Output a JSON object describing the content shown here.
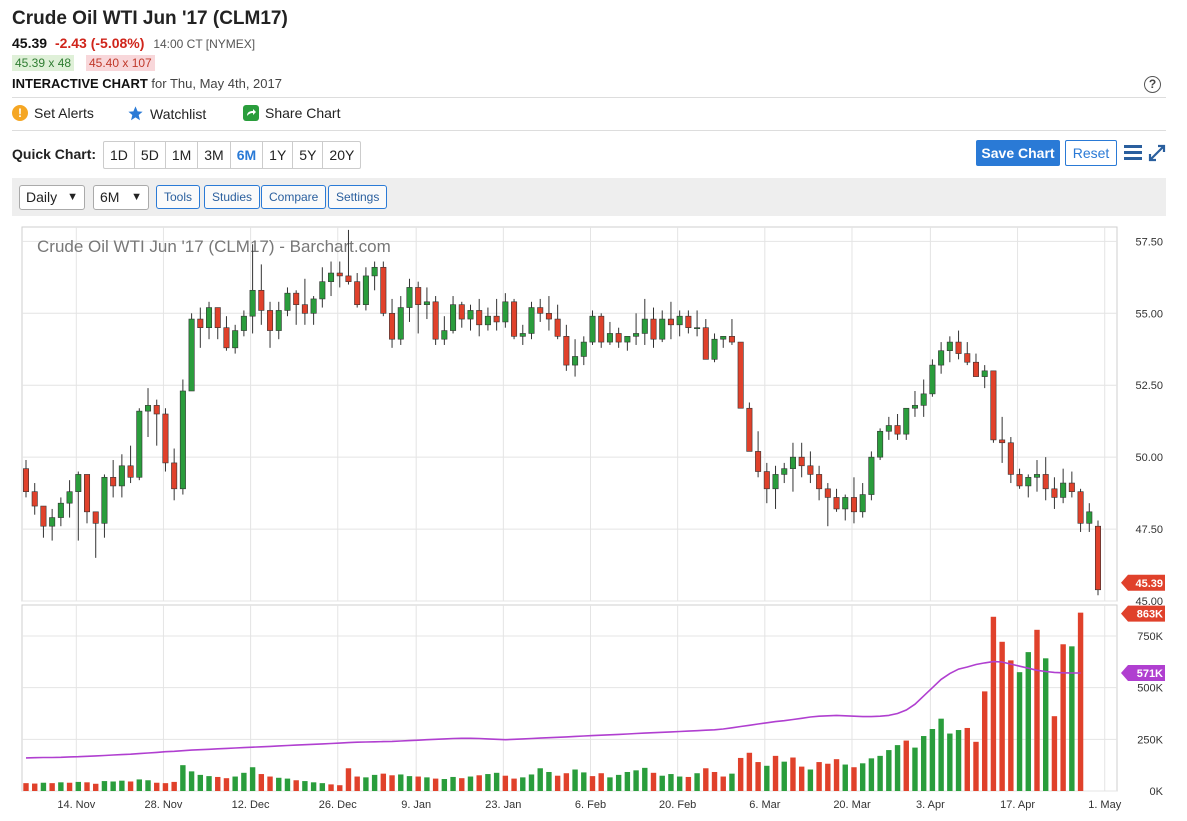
{
  "header": {
    "title": "Crude Oil WTI Jun '17 (CLM17)",
    "last": "45.39",
    "change": "-2.43 (-5.08%)",
    "time": "14:00 CT [NYMEX]",
    "bid": "45.39 x 48",
    "ask": "45.40 x 107",
    "interactive_label": "INTERACTIVE CHART",
    "interactive_date": "for Thu, May 4th, 2017",
    "help": "?"
  },
  "actions": {
    "set_alerts": "Set Alerts",
    "watchlist": "Watchlist",
    "share_chart": "Share Chart"
  },
  "quick_chart": {
    "label": "Quick Chart:",
    "ranges": [
      "1D",
      "5D",
      "1M",
      "3M",
      "6M",
      "1Y",
      "5Y",
      "20Y"
    ],
    "active": "6M"
  },
  "buttons": {
    "save": "Save Chart",
    "reset": "Reset"
  },
  "toolbar": {
    "interval": "Daily",
    "period": "6M",
    "tools": "Tools",
    "studies": "Studies",
    "compare": "Compare",
    "settings": "Settings"
  },
  "colors": {
    "up": "#2a9d3c",
    "down": "#e0412b",
    "ma": "#b03fd0",
    "accent": "#2a7ad6",
    "last_price_tag": "#e0412b",
    "volume_tag": "#e0412b",
    "ma_tag": "#b03fd0"
  },
  "chart_data": {
    "type": "candlestick",
    "title": "Crude Oil WTI Jun '17 (CLM17) - Barchart.com",
    "x_tick_labels": [
      "14. Nov",
      "28. Nov",
      "12. Dec",
      "26. Dec",
      "9. Jan",
      "23. Jan",
      "6. Feb",
      "20. Feb",
      "6. Mar",
      "20. Mar",
      "3. Apr",
      "17. Apr",
      "1. May"
    ],
    "price_axis": {
      "ticks": [
        "57.50",
        "55.00",
        "52.50",
        "50.00",
        "47.50",
        "45.00"
      ],
      "ylim": [
        45.0,
        58.0
      ]
    },
    "volume_axis": {
      "ticks": [
        "750K",
        "500K",
        "250K",
        "0K"
      ],
      "ylim": [
        0,
        900000
      ]
    },
    "last_price_label": "45.39",
    "last_volume_label": "863K",
    "volume_ma_label": "571K",
    "ohlc": [
      [
        49.6,
        49.9,
        48.6,
        48.8
      ],
      [
        48.8,
        49.1,
        48.0,
        48.3
      ],
      [
        48.3,
        48.3,
        47.2,
        47.6
      ],
      [
        47.6,
        48.2,
        47.1,
        47.9
      ],
      [
        47.9,
        48.6,
        47.6,
        48.4
      ],
      [
        48.4,
        49.2,
        47.9,
        48.8
      ],
      [
        48.8,
        49.5,
        47.1,
        49.4
      ],
      [
        49.4,
        49.4,
        47.7,
        48.1
      ],
      [
        48.1,
        48.1,
        46.5,
        47.7
      ],
      [
        47.7,
        49.4,
        47.2,
        49.3
      ],
      [
        49.3,
        49.9,
        48.6,
        49.0
      ],
      [
        49.0,
        50.1,
        48.6,
        49.7
      ],
      [
        49.7,
        50.4,
        49.1,
        49.3
      ],
      [
        49.3,
        51.7,
        49.2,
        51.6
      ],
      [
        51.6,
        52.4,
        50.7,
        51.8
      ],
      [
        51.8,
        52.0,
        50.4,
        51.5
      ],
      [
        51.5,
        51.7,
        49.5,
        49.8
      ],
      [
        49.8,
        50.3,
        48.5,
        48.9
      ],
      [
        48.9,
        52.7,
        48.7,
        52.3
      ],
      [
        52.3,
        55.0,
        52.3,
        54.8
      ],
      [
        54.8,
        55.2,
        53.8,
        54.5
      ],
      [
        54.5,
        55.4,
        54.1,
        55.2
      ],
      [
        55.2,
        55.2,
        54.1,
        54.5
      ],
      [
        54.5,
        54.9,
        53.7,
        53.8
      ],
      [
        53.8,
        54.6,
        53.6,
        54.4
      ],
      [
        54.4,
        55.1,
        54.2,
        54.9
      ],
      [
        54.9,
        57.4,
        54.3,
        55.8
      ],
      [
        55.8,
        56.7,
        54.6,
        55.1
      ],
      [
        55.1,
        55.4,
        53.8,
        54.4
      ],
      [
        54.4,
        55.4,
        54.1,
        55.1
      ],
      [
        55.1,
        55.9,
        54.9,
        55.7
      ],
      [
        55.7,
        55.8,
        54.6,
        55.3
      ],
      [
        55.3,
        56.2,
        54.6,
        55.0
      ],
      [
        55.0,
        55.6,
        54.6,
        55.5
      ],
      [
        55.5,
        56.6,
        55.2,
        56.1
      ],
      [
        56.1,
        56.8,
        55.6,
        56.4
      ],
      [
        56.4,
        56.8,
        55.9,
        56.3
      ],
      [
        56.3,
        57.9,
        56.0,
        56.1
      ],
      [
        56.1,
        56.4,
        55.2,
        55.3
      ],
      [
        55.3,
        56.6,
        55.1,
        56.3
      ],
      [
        56.3,
        56.8,
        55.8,
        56.6
      ],
      [
        56.6,
        56.8,
        54.9,
        55.0
      ],
      [
        55.0,
        55.5,
        53.8,
        54.1
      ],
      [
        54.1,
        55.6,
        53.9,
        55.2
      ],
      [
        55.2,
        56.2,
        54.7,
        55.9
      ],
      [
        55.9,
        56.1,
        54.3,
        55.3
      ],
      [
        55.3,
        55.9,
        54.8,
        55.4
      ],
      [
        55.4,
        55.6,
        53.9,
        54.1
      ],
      [
        54.1,
        54.9,
        53.9,
        54.4
      ],
      [
        54.4,
        55.6,
        54.3,
        55.3
      ],
      [
        55.3,
        55.4,
        54.5,
        54.8
      ],
      [
        54.8,
        55.3,
        54.4,
        55.1
      ],
      [
        55.1,
        55.5,
        54.2,
        54.6
      ],
      [
        54.6,
        55.2,
        54.4,
        54.9
      ],
      [
        54.9,
        55.5,
        54.4,
        54.7
      ],
      [
        54.7,
        55.7,
        54.5,
        55.4
      ],
      [
        55.4,
        55.5,
        54.1,
        54.2
      ],
      [
        54.2,
        54.6,
        53.9,
        54.3
      ],
      [
        54.3,
        55.4,
        54.1,
        55.2
      ],
      [
        55.2,
        55.5,
        54.7,
        55.0
      ],
      [
        55.0,
        55.6,
        54.4,
        54.8
      ],
      [
        54.8,
        55.3,
        54.1,
        54.2
      ],
      [
        54.2,
        54.6,
        53.0,
        53.2
      ],
      [
        53.2,
        54.1,
        52.8,
        53.5
      ],
      [
        53.5,
        54.2,
        53.2,
        54.0
      ],
      [
        54.0,
        55.1,
        53.9,
        54.9
      ],
      [
        54.9,
        55.0,
        53.8,
        54.0
      ],
      [
        54.0,
        54.7,
        53.9,
        54.3
      ],
      [
        54.3,
        54.5,
        53.8,
        54.0
      ],
      [
        54.0,
        54.2,
        53.7,
        54.2
      ],
      [
        54.2,
        55.0,
        53.9,
        54.3
      ],
      [
        54.3,
        55.5,
        53.9,
        54.8
      ],
      [
        54.8,
        55.2,
        53.8,
        54.1
      ],
      [
        54.1,
        55.1,
        54.0,
        54.8
      ],
      [
        54.8,
        55.4,
        54.1,
        54.6
      ],
      [
        54.6,
        55.1,
        54.2,
        54.9
      ],
      [
        54.9,
        55.1,
        54.3,
        54.5
      ],
      [
        54.5,
        55.1,
        54.2,
        54.5
      ],
      [
        54.5,
        54.8,
        53.4,
        53.4
      ],
      [
        53.4,
        54.3,
        53.3,
        54.1
      ],
      [
        54.1,
        54.2,
        53.8,
        54.2
      ],
      [
        54.2,
        54.8,
        53.9,
        54.0
      ],
      [
        54.0,
        54.0,
        51.8,
        51.7
      ],
      [
        51.7,
        51.9,
        50.3,
        50.2
      ],
      [
        50.2,
        50.9,
        49.3,
        49.5
      ],
      [
        49.5,
        49.8,
        48.4,
        48.9
      ],
      [
        48.9,
        49.7,
        48.2,
        49.4
      ],
      [
        49.4,
        49.8,
        49.1,
        49.6
      ],
      [
        49.6,
        50.5,
        48.8,
        50.0
      ],
      [
        50.0,
        50.5,
        49.3,
        49.7
      ],
      [
        49.7,
        50.2,
        49.1,
        49.4
      ],
      [
        49.4,
        49.7,
        48.5,
        48.9
      ],
      [
        48.9,
        49.1,
        47.6,
        48.6
      ],
      [
        48.6,
        48.9,
        48.1,
        48.2
      ],
      [
        48.2,
        48.7,
        47.8,
        48.6
      ],
      [
        48.6,
        49.3,
        47.7,
        48.1
      ],
      [
        48.1,
        49.1,
        47.9,
        48.7
      ],
      [
        48.7,
        50.2,
        48.5,
        50.0
      ],
      [
        50.0,
        51.0,
        49.9,
        50.9
      ],
      [
        50.9,
        51.4,
        50.6,
        51.1
      ],
      [
        51.1,
        51.5,
        50.6,
        50.8
      ],
      [
        50.8,
        51.6,
        50.6,
        51.7
      ],
      [
        51.7,
        52.3,
        51.4,
        51.8
      ],
      [
        51.8,
        52.7,
        51.4,
        52.2
      ],
      [
        52.2,
        53.4,
        52.1,
        53.2
      ],
      [
        53.2,
        54.0,
        52.9,
        53.7
      ],
      [
        53.7,
        54.2,
        53.3,
        54.0
      ],
      [
        54.0,
        54.4,
        53.4,
        53.6
      ],
      [
        53.6,
        54.0,
        53.2,
        53.3
      ],
      [
        53.3,
        53.6,
        52.8,
        52.8
      ],
      [
        52.8,
        53.2,
        52.4,
        53.0
      ],
      [
        53.0,
        53.0,
        50.5,
        50.6
      ],
      [
        50.6,
        51.4,
        49.8,
        50.5
      ],
      [
        50.5,
        50.7,
        49.1,
        49.4
      ],
      [
        49.4,
        49.6,
        48.9,
        49.0
      ],
      [
        49.0,
        49.4,
        48.6,
        49.3
      ],
      [
        49.3,
        49.9,
        48.8,
        49.4
      ],
      [
        49.4,
        50.0,
        48.5,
        48.9
      ],
      [
        48.9,
        49.3,
        48.2,
        48.6
      ],
      [
        48.6,
        49.6,
        48.4,
        49.1
      ],
      [
        49.1,
        49.5,
        48.6,
        48.8
      ],
      [
        48.8,
        48.9,
        47.4,
        47.7
      ],
      [
        47.7,
        48.4,
        47.4,
        48.1
      ],
      [
        47.6,
        47.8,
        45.2,
        45.39
      ]
    ],
    "volume": [
      [
        38000,
        0
      ],
      [
        36000,
        0
      ],
      [
        40000,
        1
      ],
      [
        38000,
        0
      ],
      [
        42000,
        1
      ],
      [
        40000,
        0
      ],
      [
        44000,
        1
      ],
      [
        42000,
        0
      ],
      [
        35000,
        0
      ],
      [
        48000,
        1
      ],
      [
        46000,
        1
      ],
      [
        50000,
        1
      ],
      [
        46000,
        0
      ],
      [
        56000,
        1
      ],
      [
        52000,
        1
      ],
      [
        40000,
        0
      ],
      [
        38000,
        0
      ],
      [
        44000,
        0
      ],
      [
        125000,
        1
      ],
      [
        95000,
        1
      ],
      [
        78000,
        1
      ],
      [
        72000,
        1
      ],
      [
        68000,
        0
      ],
      [
        62000,
        0
      ],
      [
        70000,
        1
      ],
      [
        88000,
        1
      ],
      [
        115000,
        1
      ],
      [
        82000,
        0
      ],
      [
        70000,
        0
      ],
      [
        64000,
        1
      ],
      [
        60000,
        1
      ],
      [
        52000,
        0
      ],
      [
        48000,
        1
      ],
      [
        42000,
        1
      ],
      [
        38000,
        1
      ],
      [
        32000,
        0
      ],
      [
        28000,
        0
      ],
      [
        110000,
        0
      ],
      [
        70000,
        0
      ],
      [
        66000,
        1
      ],
      [
        78000,
        1
      ],
      [
        84000,
        0
      ],
      [
        76000,
        0
      ],
      [
        80000,
        1
      ],
      [
        72000,
        1
      ],
      [
        70000,
        0
      ],
      [
        66000,
        1
      ],
      [
        60000,
        0
      ],
      [
        58000,
        1
      ],
      [
        68000,
        1
      ],
      [
        62000,
        0
      ],
      [
        70000,
        1
      ],
      [
        76000,
        0
      ],
      [
        82000,
        1
      ],
      [
        88000,
        1
      ],
      [
        74000,
        0
      ],
      [
        60000,
        0
      ],
      [
        66000,
        1
      ],
      [
        80000,
        1
      ],
      [
        110000,
        1
      ],
      [
        92000,
        1
      ],
      [
        74000,
        0
      ],
      [
        86000,
        0
      ],
      [
        104000,
        1
      ],
      [
        90000,
        1
      ],
      [
        72000,
        0
      ],
      [
        86000,
        0
      ],
      [
        66000,
        1
      ],
      [
        78000,
        1
      ],
      [
        92000,
        1
      ],
      [
        100000,
        1
      ],
      [
        112000,
        1
      ],
      [
        88000,
        0
      ],
      [
        74000,
        1
      ],
      [
        82000,
        1
      ],
      [
        70000,
        1
      ],
      [
        68000,
        0
      ],
      [
        86000,
        1
      ],
      [
        110000,
        0
      ],
      [
        92000,
        0
      ],
      [
        70000,
        0
      ],
      [
        84000,
        1
      ],
      [
        160000,
        0
      ],
      [
        185000,
        0
      ],
      [
        140000,
        0
      ],
      [
        122000,
        1
      ],
      [
        170000,
        0
      ],
      [
        142000,
        1
      ],
      [
        162000,
        0
      ],
      [
        118000,
        0
      ],
      [
        104000,
        1
      ],
      [
        140000,
        0
      ],
      [
        132000,
        0
      ],
      [
        154000,
        0
      ],
      [
        128000,
        1
      ],
      [
        115000,
        0
      ],
      [
        134000,
        1
      ],
      [
        158000,
        1
      ],
      [
        170000,
        1
      ],
      [
        198000,
        1
      ],
      [
        222000,
        1
      ],
      [
        244000,
        0
      ],
      [
        210000,
        1
      ],
      [
        266000,
        1
      ],
      [
        300000,
        1
      ],
      [
        350000,
        1
      ],
      [
        278000,
        1
      ],
      [
        295000,
        1
      ],
      [
        305000,
        0
      ],
      [
        238000,
        0
      ],
      [
        482000,
        0
      ],
      [
        843000,
        0
      ],
      [
        722000,
        0
      ],
      [
        632000,
        0
      ],
      [
        575000,
        1
      ],
      [
        672000,
        1
      ],
      [
        780000,
        0
      ],
      [
        642000,
        1
      ],
      [
        362000,
        0
      ],
      [
        710000,
        0
      ],
      [
        700000,
        1
      ],
      [
        863000,
        0
      ]
    ],
    "volume_ma": [
      160000,
      161000,
      162000,
      162000,
      163000,
      165000,
      166000,
      168000,
      170000,
      172000,
      174000,
      176000,
      178000,
      181000,
      184000,
      187000,
      190000,
      192000,
      195000,
      198000,
      200000,
      202000,
      204000,
      206000,
      208000,
      210000,
      212000,
      214000,
      216000,
      218000,
      220000,
      222000,
      224000,
      226000,
      228000,
      230000,
      232000,
      234000,
      236000,
      237000,
      238000,
      239000,
      240000,
      242000,
      244000,
      246000,
      248000,
      250000,
      252000,
      254000,
      255000,
      255000,
      254000,
      252000,
      250000,
      248000,
      250000,
      252000,
      254000,
      256000,
      258000,
      260000,
      262000,
      264000,
      266000,
      268000,
      270000,
      272000,
      274000,
      276000,
      278000,
      280000,
      282000,
      284000,
      286000,
      288000,
      290000,
      292000,
      294000,
      296000,
      300000,
      306000,
      312000,
      318000,
      324000,
      330000,
      336000,
      340000,
      346000,
      352000,
      358000,
      362000,
      364000,
      366000,
      364000,
      362000,
      360000,
      360000,
      362000,
      366000,
      375000,
      392000,
      420000,
      460000,
      500000,
      540000,
      568000,
      590000,
      600000,
      612000,
      620000,
      626000,
      624000,
      614000,
      604000,
      594000,
      584000,
      578000,
      574000,
      572000,
      571000,
      571000
    ]
  }
}
